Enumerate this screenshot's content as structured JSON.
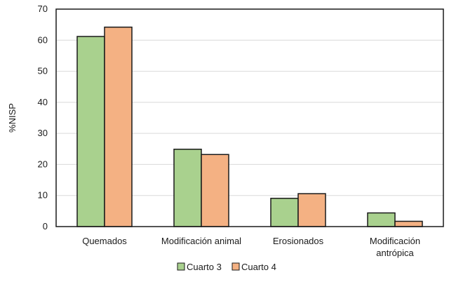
{
  "chart_data": {
    "type": "bar",
    "title": "",
    "xlabel": "",
    "ylabel": "%NISP",
    "ylim": [
      0,
      70
    ],
    "yticks": [
      0,
      10,
      20,
      30,
      40,
      50,
      60,
      70
    ],
    "grid": true,
    "legend_position": "bottom",
    "categories": [
      [
        "Quemados"
      ],
      [
        "Modificación animal"
      ],
      [
        "Erosionados"
      ],
      [
        "Modificación",
        "antrópica"
      ]
    ],
    "series": [
      {
        "name": "Cuarto 3",
        "color": "#a9d18e",
        "values": [
          61.2,
          24.9,
          9.1,
          4.4
        ]
      },
      {
        "name": "Cuarto 4",
        "color": "#f4b183",
        "values": [
          64.2,
          23.2,
          10.6,
          1.7
        ]
      }
    ]
  }
}
